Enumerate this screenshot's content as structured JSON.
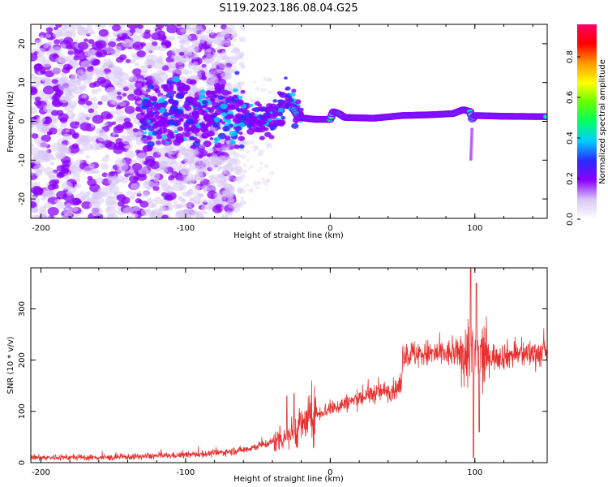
{
  "title": "S119.2023.186.08.04.G25",
  "chart_data": [
    {
      "type": "heatmap",
      "xlabel": "Height of straight line (km)",
      "ylabel": "Frequency (Hz)",
      "xlim": [
        -207,
        150
      ],
      "ylim": [
        -25,
        25
      ],
      "xticks": [
        -200,
        -100,
        0,
        100
      ],
      "yticks": [
        -20,
        -10,
        0,
        10,
        20
      ],
      "ridge": [
        {
          "x": -130,
          "y": 1.0
        },
        {
          "x": -100,
          "y": 3.0
        },
        {
          "x": -80,
          "y": 2.0
        },
        {
          "x": -60,
          "y": 1.5
        },
        {
          "x": -45,
          "y": 0.5
        },
        {
          "x": -35,
          "y": 2.5
        },
        {
          "x": -30,
          "y": 5.0
        },
        {
          "x": -25,
          "y": 3.0
        },
        {
          "x": -22,
          "y": 1.0
        },
        {
          "x": -10,
          "y": 0.5
        },
        {
          "x": 0,
          "y": 0.5
        },
        {
          "x": 2,
          "y": 2.5
        },
        {
          "x": 6,
          "y": 2.0
        },
        {
          "x": 10,
          "y": 1.0
        },
        {
          "x": 30,
          "y": 0.8
        },
        {
          "x": 50,
          "y": 1.5
        },
        {
          "x": 70,
          "y": 1.7
        },
        {
          "x": 85,
          "y": 2.0
        },
        {
          "x": 92,
          "y": 3.0
        },
        {
          "x": 97,
          "y": 2.5
        },
        {
          "x": 98,
          "y": 0.5
        },
        {
          "x": 100,
          "y": 1.5
        },
        {
          "x": 120,
          "y": 1.3
        },
        {
          "x": 150,
          "y": 1.2
        }
      ],
      "colorbar": {
        "label": "Normalized spectral amplitude",
        "ticks": [
          "0.0",
          "0.2",
          "0.4",
          "0.6",
          "0.8"
        ],
        "range": [
          0,
          0.96
        ],
        "colors": [
          "#ffffff",
          "#d9c8f5",
          "#8a00ff",
          "#2a2aff",
          "#00ccff",
          "#00ff66",
          "#66ff00",
          "#ffff00",
          "#ff9900",
          "#ff0000",
          "#ff0066"
        ]
      }
    },
    {
      "type": "line",
      "xlabel": "Height of straight line (km)",
      "ylabel": "SNR (10 * v/v)",
      "xlim": [
        -207,
        150
      ],
      "ylim": [
        0,
        380
      ],
      "xticks": [
        -200,
        -100,
        0,
        100
      ],
      "yticks": [
        0,
        100,
        200,
        300
      ],
      "color": "#e8312f",
      "trend": [
        {
          "x": -207,
          "y": 10
        },
        {
          "x": -150,
          "y": 10
        },
        {
          "x": -100,
          "y": 15
        },
        {
          "x": -80,
          "y": 18
        },
        {
          "x": -60,
          "y": 25
        },
        {
          "x": -40,
          "y": 40
        },
        {
          "x": -25,
          "y": 60
        },
        {
          "x": -10,
          "y": 95
        },
        {
          "x": 10,
          "y": 115
        },
        {
          "x": 30,
          "y": 135
        },
        {
          "x": 49,
          "y": 145
        },
        {
          "x": 50,
          "y": 212
        },
        {
          "x": 90,
          "y": 212
        },
        {
          "x": 100,
          "y": 205
        },
        {
          "x": 150,
          "y": 215
        }
      ],
      "spikes": [
        {
          "x": -30,
          "y": 130
        },
        {
          "x": -25,
          "y": 135
        },
        {
          "x": 97,
          "y": 380
        },
        {
          "x": 99,
          "y": 10
        },
        {
          "x": 101,
          "y": 350
        },
        {
          "x": 103,
          "y": 60
        }
      ]
    }
  ]
}
